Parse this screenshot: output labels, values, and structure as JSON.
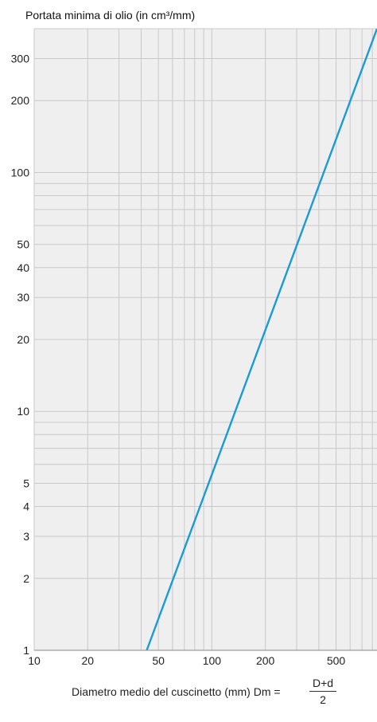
{
  "chart_data": {
    "type": "line",
    "title": "Portata minima di olio (in cm³/mm)",
    "xlabel": "Diametro medio del cuscinetto (mm) Dm =",
    "xlabel_formula": {
      "numerator": "D+d",
      "denominator": "2"
    },
    "x_scale": "log",
    "y_scale": "log",
    "xlim": [
      10,
      850
    ],
    "ylim": [
      1,
      400
    ],
    "x_ticks": [
      10,
      20,
      50,
      100,
      200,
      500
    ],
    "y_ticks": [
      1,
      2,
      3,
      4,
      5,
      10,
      20,
      30,
      40,
      50,
      100,
      200,
      300
    ],
    "grid": true,
    "series": [
      {
        "color": "#1a9bd7",
        "x": [
          43,
          850
        ],
        "y": [
          1,
          400
        ]
      }
    ],
    "colors": {
      "background": "#efefef",
      "grid": "#c9c9c9",
      "axis": "#888888"
    }
  }
}
